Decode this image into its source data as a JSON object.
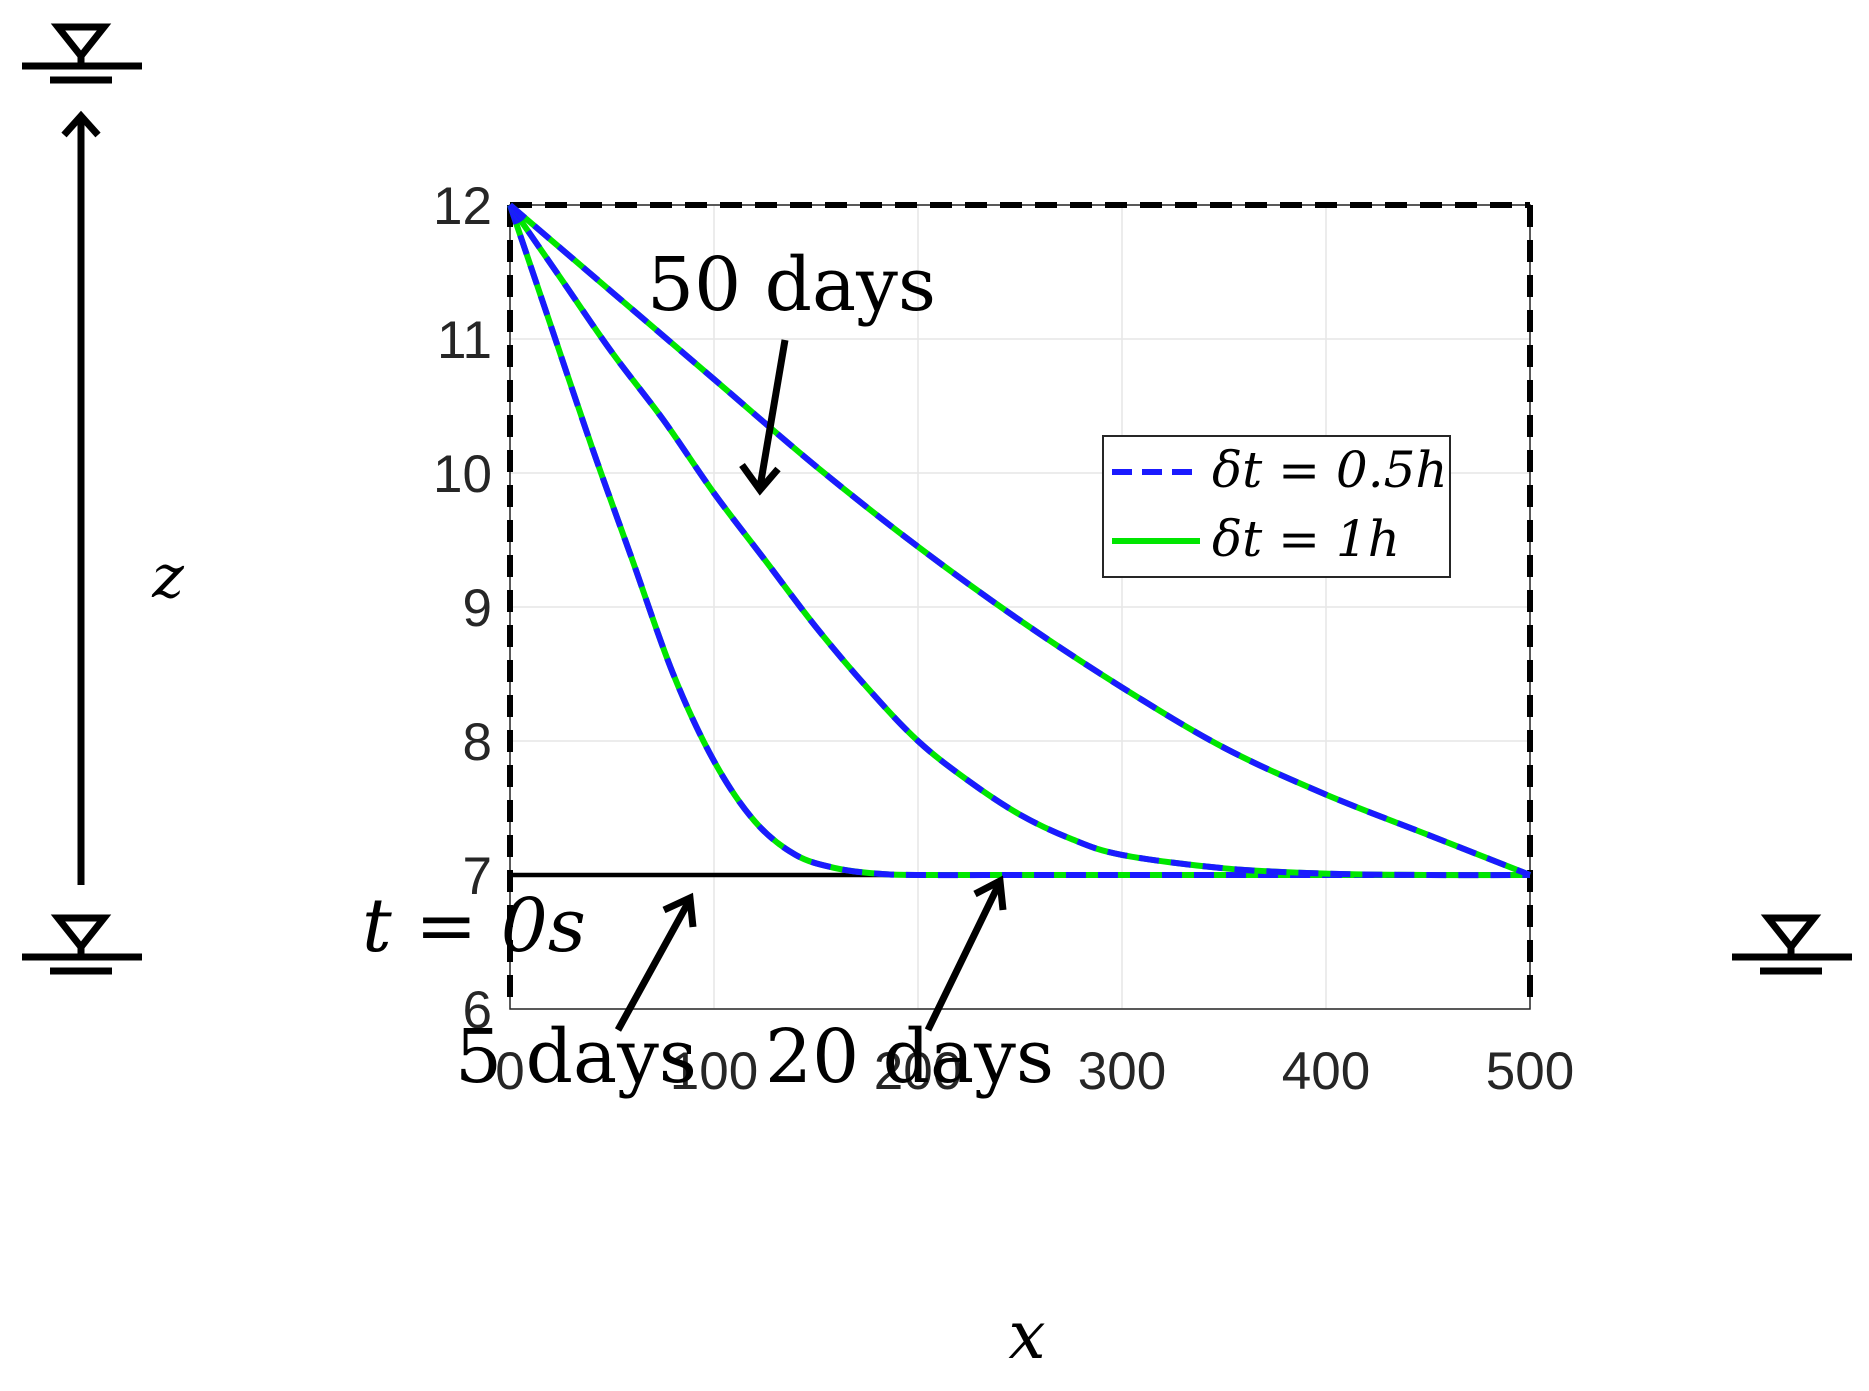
{
  "chart_data": {
    "type": "line",
    "xlabel": "x",
    "ylabel": "z",
    "xlim": [
      0,
      500
    ],
    "ylim": [
      6,
      12
    ],
    "xticks": [
      "0",
      "100",
      "200",
      "300",
      "400",
      "500"
    ],
    "yticks": [
      "6",
      "7",
      "8",
      "9",
      "10",
      "11",
      "12"
    ],
    "grid": true,
    "legend_position": "upper right",
    "legend": [
      {
        "label": "δt = 0.5h",
        "style": "dashed",
        "color": "#1a1aff"
      },
      {
        "label": "δt = 1h",
        "style": "solid",
        "color": "#00e600"
      }
    ],
    "initial_condition": {
      "label": "t = 0s",
      "x": [
        0,
        500
      ],
      "z": [
        7,
        7
      ]
    },
    "series": [
      {
        "time": "5 days",
        "x": [
          0,
          20,
          40,
          60,
          80,
          100,
          120,
          140,
          160,
          180,
          200,
          250,
          300,
          400,
          500
        ],
        "z": [
          12,
          11.1,
          10.2,
          9.35,
          8.5,
          7.85,
          7.4,
          7.15,
          7.05,
          7.01,
          7.0,
          7.0,
          7.0,
          7.0,
          7.0
        ]
      },
      {
        "time": "20 days",
        "x": [
          0,
          25,
          50,
          75,
          100,
          125,
          150,
          175,
          200,
          225,
          250,
          275,
          300,
          350,
          400,
          450,
          500
        ],
        "z": [
          12,
          11.45,
          10.9,
          10.4,
          9.85,
          9.35,
          8.85,
          8.4,
          8.0,
          7.7,
          7.45,
          7.27,
          7.15,
          7.05,
          7.01,
          7.0,
          7.0
        ]
      },
      {
        "time": "50 days",
        "x": [
          0,
          50,
          100,
          150,
          200,
          250,
          300,
          350,
          400,
          450,
          500
        ],
        "z": [
          12,
          11.35,
          10.7,
          10.05,
          9.45,
          8.9,
          8.4,
          7.95,
          7.6,
          7.3,
          7.0
        ]
      }
    ],
    "annotations": [
      {
        "text": "50 days",
        "target": {
          "x": 124,
          "z": 9.9
        }
      },
      {
        "text": "5 days",
        "target": {
          "x": 90,
          "z": 6.85
        }
      },
      {
        "text": "20 days",
        "target": {
          "x": 240,
          "z": 7.0
        }
      }
    ]
  }
}
